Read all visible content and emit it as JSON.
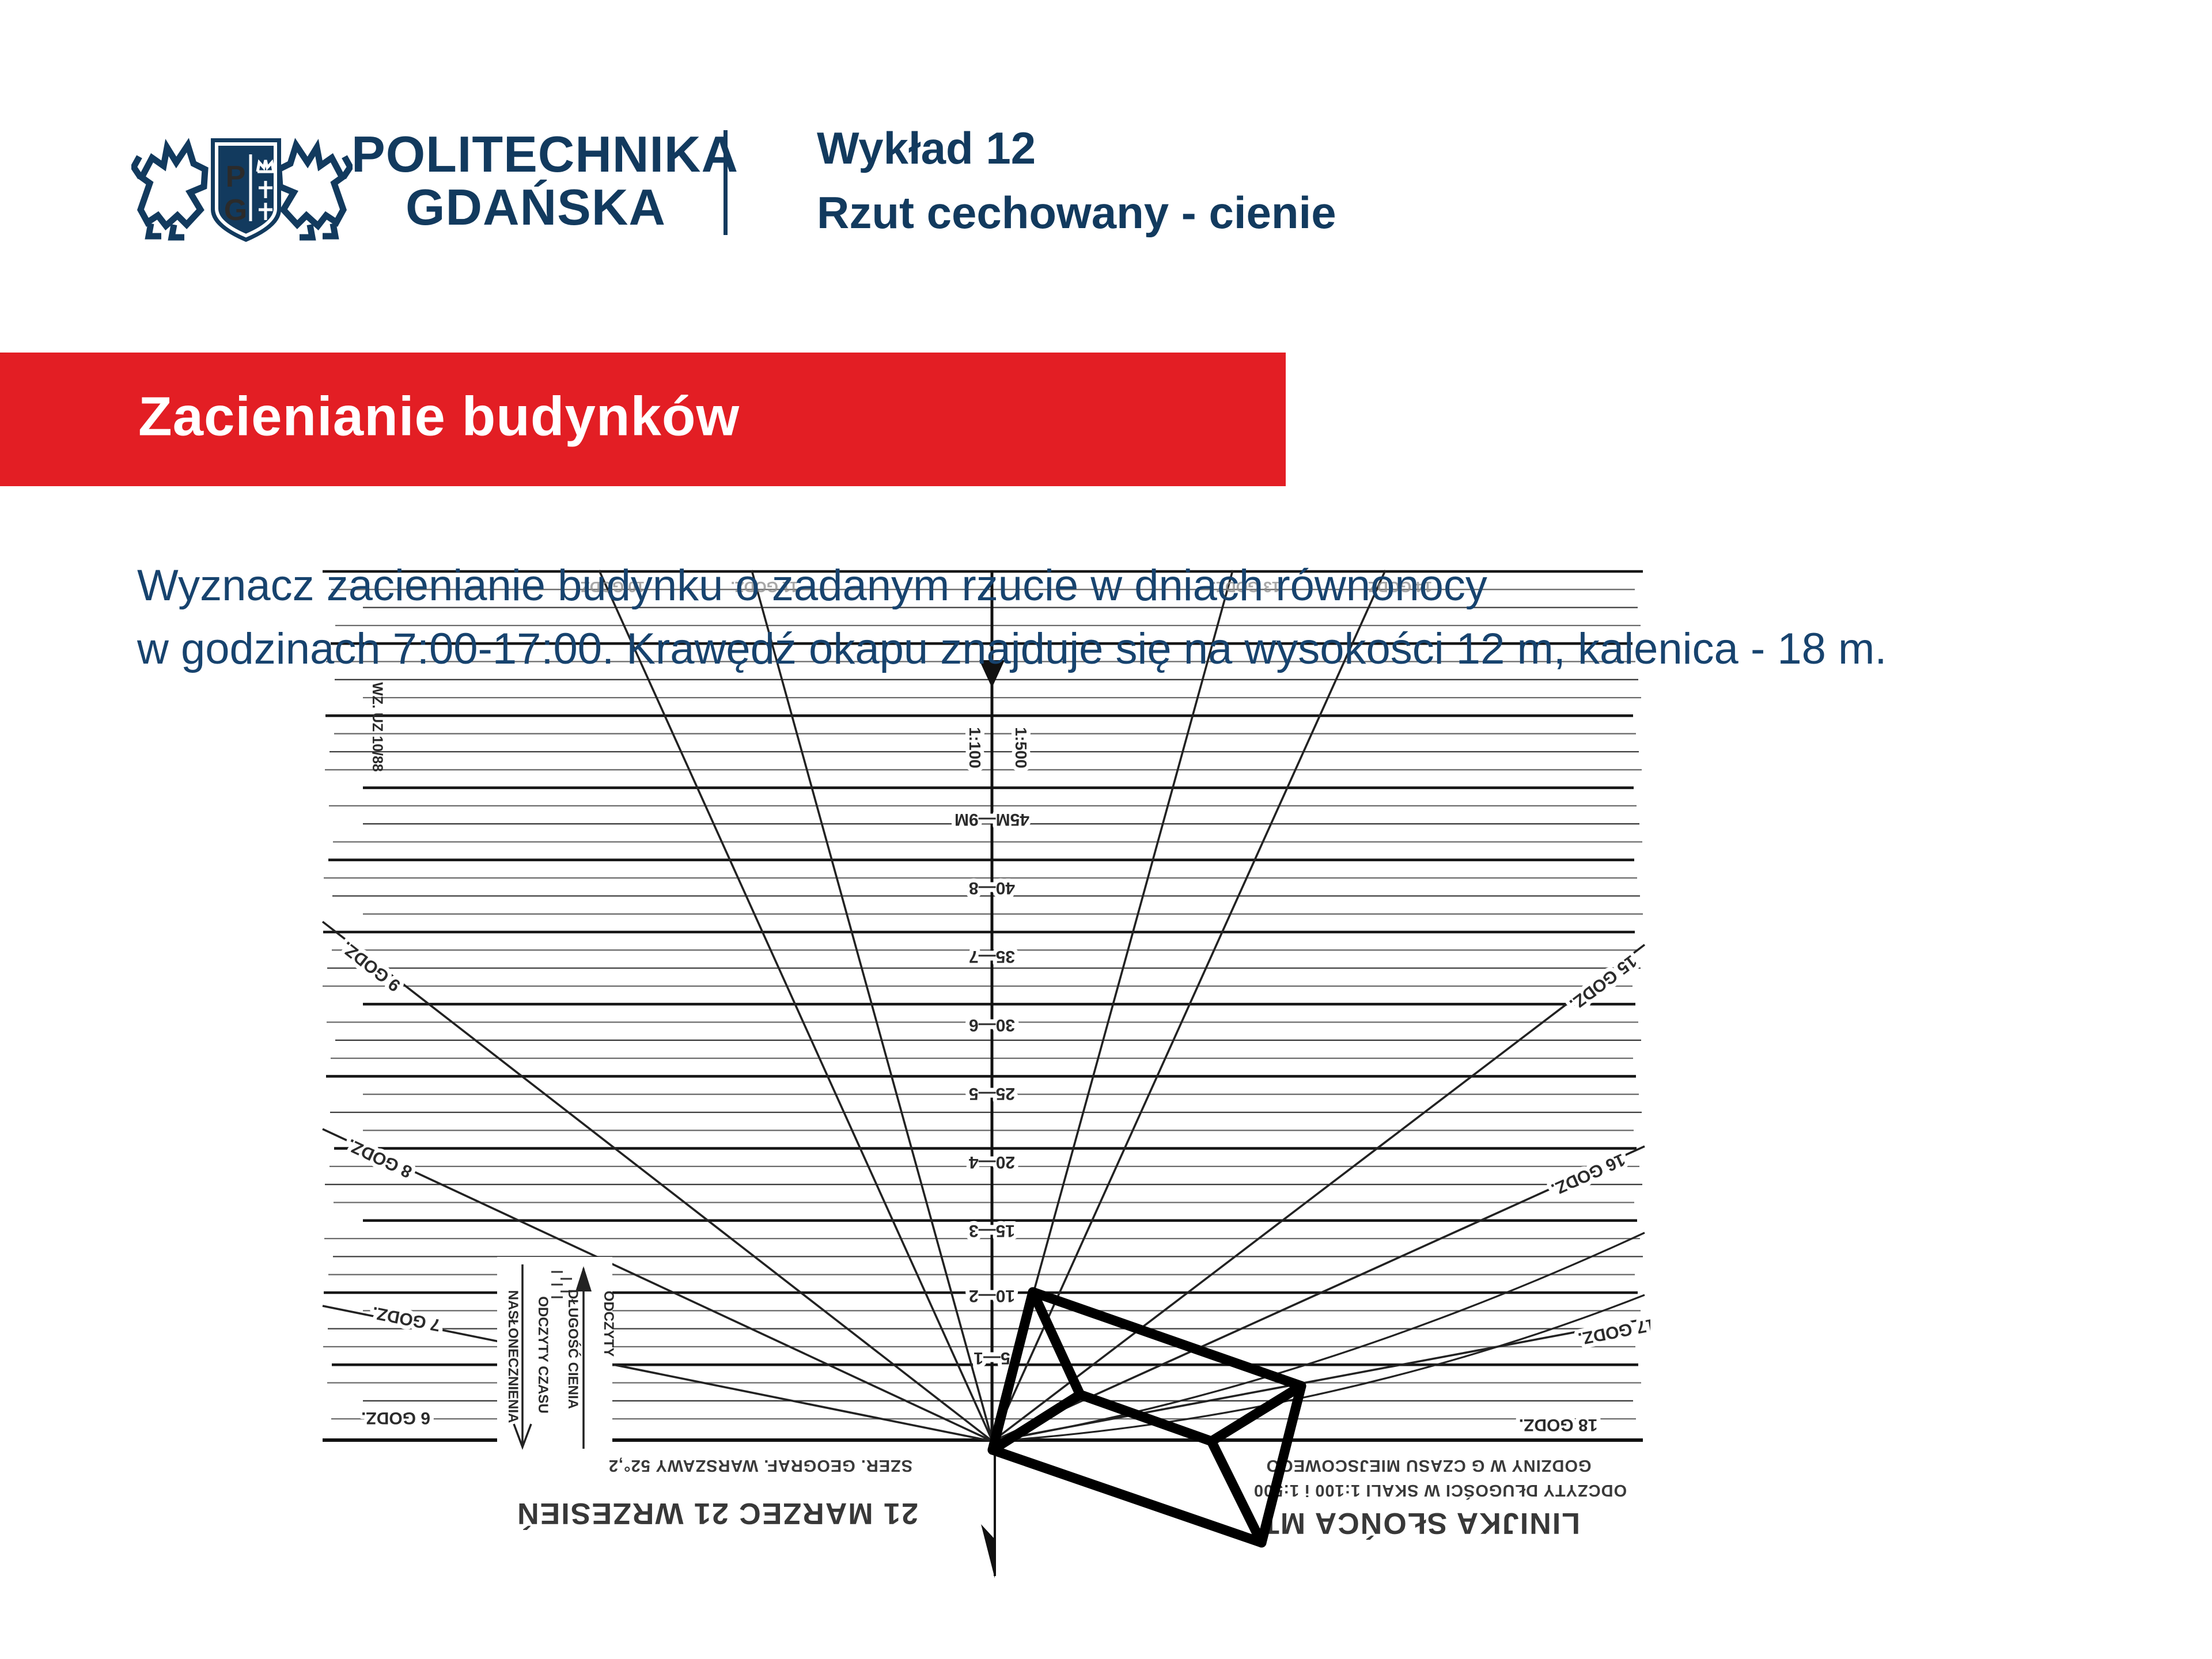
{
  "header": {
    "emblem_letters": {
      "top": "P",
      "bottom": "G"
    },
    "brand_line1": "POLITECHNIKA",
    "brand_line2": "GDAŃSKA",
    "lecture_label": "Wykład 12",
    "lecture_title": "Rzut cechowany - cienie"
  },
  "banner": {
    "title": "Zacienianie budynków"
  },
  "task": {
    "line1": "Wyznacz zacienianie budynku o zadanym rzucie w dniach równonocy",
    "line2": "w godzinach 7:00-17:00. Krawędź okapu znajduje się na wysokości 12 m, kalenica - 18 m."
  },
  "diagram": {
    "kind": "sun ruler chart, scanned and rotated 180 degrees",
    "stamp": "WZ. UZ 10/88",
    "scale_label_left": "1:100",
    "scale_label_right": "1:500",
    "axis_tick_labels": [
      "45M—9M",
      "40—8",
      "35—7",
      "30—6",
      "25—5",
      "20—4",
      "15—3",
      "10—2",
      "5—1"
    ],
    "hour_labels_left": [
      "9 GODZ.",
      "8 GODZ.",
      "7 GODZ."
    ],
    "hour_labels_right": [
      "15 GODZ.",
      "16 GODZ.",
      "17 GODZ."
    ],
    "ground_label_left": "6 GODZ.",
    "ground_label_right": "18 GODZ.",
    "top_edge_labels": [
      "10 GODZ.",
      "11 GODZ.",
      "13 GODZ.",
      "14 GODZ."
    ],
    "column_labels": [
      "NASŁONECZNIENIA",
      "ODCZYTY CZASU",
      "DŁUGOŚĆ CIENIA",
      "ODCZYTY"
    ],
    "captions": {
      "latitude": "SZER. GEOGRAF. WARSZAWY 52°,2",
      "dates": "21 MARZEC   21 WRZESIEŃ",
      "hours_note": "GODZINY W G CZASU MIEJSCOWEGO",
      "scale_note": "ODCZYTY DŁUGOŚCI W SKALI 1:100 i 1:500",
      "chart_title": "LINIJKA SŁOŃCA MT"
    }
  },
  "colors": {
    "navy": "#123a5e",
    "body_text": "#17436e",
    "banner_red": "#e31e24",
    "line_dark": "#161616",
    "line_mid": "#4f4f4f"
  }
}
